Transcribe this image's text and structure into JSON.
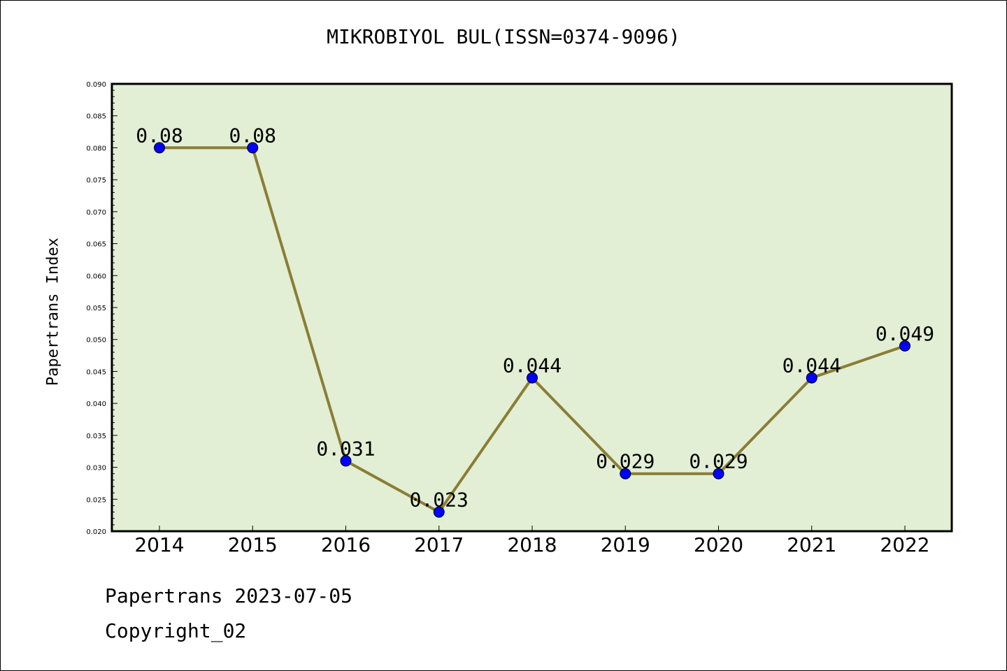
{
  "chart": {
    "title": "MIKROBIYOL BUL(ISSN=0374-9096)",
    "ylabel": "Papertrans Index"
  },
  "footer": {
    "line1": "Papertrans 2023-07-05",
    "line2": "Copyright_02"
  },
  "colors": {
    "plot_background": "#e2efd5",
    "line": "#8b7d35",
    "marker": "#0000ff"
  },
  "chart_data": {
    "type": "line",
    "title": "MIKROBIYOL BUL(ISSN=0374-9096)",
    "xlabel": "",
    "ylabel": "Papertrans Index",
    "categories": [
      "2014",
      "2015",
      "2016",
      "2017",
      "2018",
      "2019",
      "2020",
      "2021",
      "2022"
    ],
    "values": [
      0.08,
      0.08,
      0.031,
      0.023,
      0.044,
      0.029,
      0.029,
      0.044,
      0.049
    ],
    "data_labels": [
      "0.08",
      "0.08",
      "0.031",
      "0.023",
      "0.044",
      "0.029",
      "0.029",
      "0.044",
      "0.049"
    ],
    "ylim": [
      0.02,
      0.09
    ],
    "yticks": [
      "0.020",
      "0.025",
      "0.030",
      "0.035",
      "0.040",
      "0.045",
      "0.050",
      "0.055",
      "0.060",
      "0.065",
      "0.070",
      "0.075",
      "0.080",
      "0.085",
      "0.090"
    ],
    "grid": false,
    "legend": "none"
  }
}
